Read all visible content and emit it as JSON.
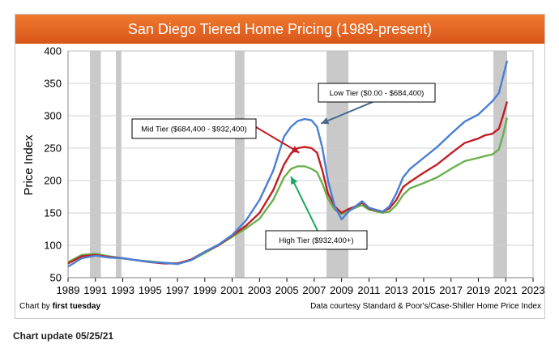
{
  "chart_data": {
    "type": "line",
    "title": "San Diego Tiered Home Pricing (1989-present)",
    "ylabel": "Price Index",
    "xlabel": "",
    "xlim": [
      1989,
      2023
    ],
    "ylim": [
      50,
      400
    ],
    "x_ticks": [
      "1989",
      "1991",
      "1993",
      "1995",
      "1997",
      "1999",
      "2001",
      "2003",
      "2005",
      "2007",
      "2009",
      "2011",
      "2013",
      "2015",
      "2017",
      "2019",
      "2021",
      "2023"
    ],
    "y_ticks": [
      "50",
      "100",
      "150",
      "200",
      "250",
      "300",
      "350",
      "400"
    ],
    "grid": "horizontal",
    "recessions": [
      [
        1990.6,
        1991.4
      ],
      [
        1992.5,
        1992.9
      ],
      [
        2001.2,
        2001.9
      ],
      [
        2007.9,
        2009.5
      ],
      [
        2020.1,
        2021.1
      ]
    ],
    "series": [
      {
        "name": "Low Tier ($0.00 - $684,400)",
        "color": "#4a7fd4",
        "points": [
          [
            1989,
            67
          ],
          [
            1990,
            80
          ],
          [
            1991,
            84
          ],
          [
            1992,
            81
          ],
          [
            1993,
            80
          ],
          [
            1994,
            77
          ],
          [
            1995,
            74
          ],
          [
            1996,
            73
          ],
          [
            1997,
            71
          ],
          [
            1998,
            77
          ],
          [
            1999,
            90
          ],
          [
            2000,
            101
          ],
          [
            2001,
            116
          ],
          [
            2002,
            138
          ],
          [
            2003,
            170
          ],
          [
            2004,
            215
          ],
          [
            2004.8,
            268
          ],
          [
            2005.3,
            283
          ],
          [
            2005.8,
            292
          ],
          [
            2006.3,
            295
          ],
          [
            2006.8,
            293
          ],
          [
            2007.2,
            283
          ],
          [
            2007.6,
            250
          ],
          [
            2008,
            200
          ],
          [
            2008.5,
            160
          ],
          [
            2009,
            140
          ],
          [
            2009.5,
            152
          ],
          [
            2010,
            160
          ],
          [
            2010.5,
            168
          ],
          [
            2011,
            158
          ],
          [
            2012,
            152
          ],
          [
            2012.5,
            160
          ],
          [
            2013,
            180
          ],
          [
            2013.5,
            205
          ],
          [
            2014,
            218
          ],
          [
            2015,
            235
          ],
          [
            2016,
            252
          ],
          [
            2017,
            272
          ],
          [
            2018,
            291
          ],
          [
            2019,
            302
          ],
          [
            2019.5,
            312
          ],
          [
            2020,
            322
          ],
          [
            2020.5,
            335
          ],
          [
            2020.8,
            360
          ],
          [
            2021.1,
            385
          ]
        ]
      },
      {
        "name": "Mid Tier ($684,400 - $932,400)",
        "color": "#c21d24",
        "points": [
          [
            1989,
            72
          ],
          [
            1990,
            83
          ],
          [
            1991,
            85
          ],
          [
            1992,
            82
          ],
          [
            1993,
            80
          ],
          [
            1994,
            77
          ],
          [
            1995,
            74
          ],
          [
            1996,
            72
          ],
          [
            1997,
            72
          ],
          [
            1998,
            78
          ],
          [
            1999,
            90
          ],
          [
            2000,
            100
          ],
          [
            2001,
            115
          ],
          [
            2002,
            130
          ],
          [
            2003,
            150
          ],
          [
            2004,
            185
          ],
          [
            2004.8,
            225
          ],
          [
            2005.3,
            242
          ],
          [
            2005.8,
            250
          ],
          [
            2006.3,
            252
          ],
          [
            2006.8,
            250
          ],
          [
            2007.2,
            243
          ],
          [
            2007.6,
            215
          ],
          [
            2008,
            180
          ],
          [
            2008.5,
            160
          ],
          [
            2009,
            150
          ],
          [
            2009.5,
            156
          ],
          [
            2010,
            160
          ],
          [
            2010.5,
            166
          ],
          [
            2011,
            157
          ],
          [
            2012,
            152
          ],
          [
            2012.5,
            157
          ],
          [
            2013,
            170
          ],
          [
            2013.5,
            190
          ],
          [
            2014,
            198
          ],
          [
            2015,
            212
          ],
          [
            2016,
            225
          ],
          [
            2017,
            242
          ],
          [
            2018,
            258
          ],
          [
            2019,
            265
          ],
          [
            2019.5,
            270
          ],
          [
            2020,
            272
          ],
          [
            2020.5,
            280
          ],
          [
            2020.8,
            300
          ],
          [
            2021.1,
            322
          ]
        ]
      },
      {
        "name": "High Tier ($932,400+)",
        "color": "#6ab04c",
        "points": [
          [
            1989,
            74
          ],
          [
            1990,
            85
          ],
          [
            1991,
            87
          ],
          [
            1992,
            83
          ],
          [
            1993,
            80
          ],
          [
            1994,
            77
          ],
          [
            1995,
            75
          ],
          [
            1996,
            73
          ],
          [
            1997,
            72
          ],
          [
            1998,
            77
          ],
          [
            1999,
            88
          ],
          [
            2000,
            100
          ],
          [
            2001,
            113
          ],
          [
            2002,
            126
          ],
          [
            2003,
            141
          ],
          [
            2004,
            170
          ],
          [
            2004.8,
            205
          ],
          [
            2005.3,
            218
          ],
          [
            2005.8,
            222
          ],
          [
            2006.3,
            222
          ],
          [
            2006.8,
            218
          ],
          [
            2007.2,
            213
          ],
          [
            2007.6,
            195
          ],
          [
            2008,
            172
          ],
          [
            2008.5,
            155
          ],
          [
            2009,
            148
          ],
          [
            2009.5,
            153
          ],
          [
            2010,
            158
          ],
          [
            2010.5,
            162
          ],
          [
            2011,
            155
          ],
          [
            2012,
            150
          ],
          [
            2012.5,
            152
          ],
          [
            2013,
            162
          ],
          [
            2013.5,
            178
          ],
          [
            2014,
            188
          ],
          [
            2015,
            196
          ],
          [
            2016,
            205
          ],
          [
            2017,
            218
          ],
          [
            2018,
            230
          ],
          [
            2019,
            235
          ],
          [
            2019.5,
            238
          ],
          [
            2020,
            240
          ],
          [
            2020.5,
            248
          ],
          [
            2020.8,
            270
          ],
          [
            2021.1,
            297
          ]
        ]
      }
    ],
    "annotations": [
      {
        "text": "Low Tier ($0.00 - $684,400)",
        "series": 0
      },
      {
        "text": "Mid Tier ($684,400 - $932,400)",
        "series": 1
      },
      {
        "text": "High Tier ($932,400+)",
        "series": 2
      }
    ]
  },
  "credit_left_prefix": "Chart by ",
  "credit_left_brand": "first tuesday",
  "credit_right": "Data courtesy Standard & Poor's/Case-Shiller Home Price Index",
  "update_note": "Chart update 05/25/21",
  "colors": {
    "title_bar": "#e8692a",
    "recession_band": "#c0c0c0"
  }
}
